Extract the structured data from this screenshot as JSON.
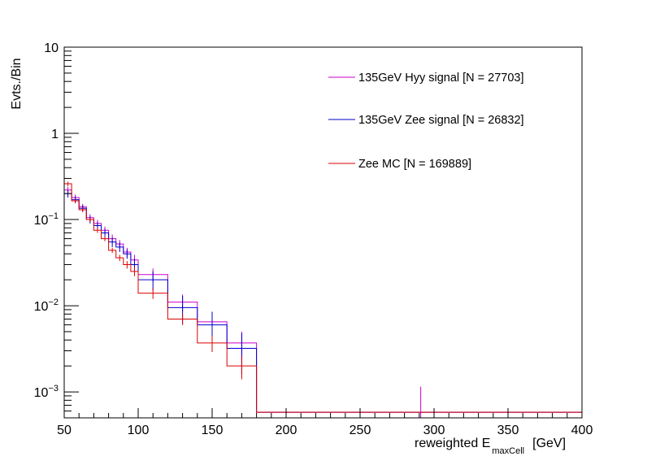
{
  "chart_data": {
    "type": "line",
    "style": "step-histogram",
    "xlabel": "reweighted E",
    "xlabel_sub": "maxCell",
    "xlabel_unit": "[GeV]",
    "ylabel": "Evts./Bin",
    "xlim": [
      50,
      400
    ],
    "ylim": [
      0.0005,
      10
    ],
    "yscale": "log",
    "grid": false,
    "legend_position": "top-right",
    "x_ticks": [
      {
        "value": 50,
        "label": "50"
      },
      {
        "value": 100,
        "label": "100"
      },
      {
        "value": 150,
        "label": "150"
      },
      {
        "value": 200,
        "label": "200"
      },
      {
        "value": 250,
        "label": "250"
      },
      {
        "value": 300,
        "label": "300"
      },
      {
        "value": 350,
        "label": "350"
      },
      {
        "value": 400,
        "label": "400"
      }
    ],
    "y_ticks": [
      {
        "value": 10,
        "label": "10",
        "exp": ""
      },
      {
        "value": 1,
        "label": "1",
        "exp": ""
      },
      {
        "value": 0.1,
        "label": "10",
        "exp": "−1"
      },
      {
        "value": 0.01,
        "label": "10",
        "exp": "−2"
      },
      {
        "value": 0.001,
        "label": "10",
        "exp": "−3"
      }
    ],
    "bin_edges": [
      50,
      55,
      60,
      65,
      70,
      75,
      80,
      85,
      90,
      95,
      100,
      120,
      140,
      160,
      180,
      400
    ],
    "series": [
      {
        "name": "135GeV Hyy signal [N = 27703]",
        "color": "#cc00cc",
        "values": [
          0.22,
          0.18,
          0.14,
          0.105,
          0.09,
          0.075,
          0.06,
          0.052,
          0.042,
          0.034,
          0.023,
          0.011,
          0.0065,
          0.0037,
          0.00058
        ],
        "errors": [
          0.02,
          0.015,
          0.012,
          0.01,
          0.009,
          0.008,
          0.007,
          0.006,
          0.005,
          0.005,
          0.004,
          0.0025,
          0.0018,
          0.0013,
          0.0001
        ],
        "extra_errorbars": [
          {
            "x": 291,
            "y": 0.00058,
            "hi": 0.00115
          }
        ]
      },
      {
        "name": "135GeV Zee signal [N = 26832]",
        "color": "#0000cc",
        "values": [
          0.2,
          0.17,
          0.135,
          0.1,
          0.085,
          0.07,
          0.055,
          0.048,
          0.04,
          0.03,
          0.02,
          0.0095,
          0.006,
          0.0032,
          0.00058
        ],
        "errors": [
          0.02,
          0.015,
          0.012,
          0.01,
          0.009,
          0.008,
          0.007,
          0.006,
          0.005,
          0.005,
          0.005,
          0.0035,
          0.0025,
          0.0016,
          0.0001
        ]
      },
      {
        "name": "Zee MC [N = 169889]",
        "color": "#dd0000",
        "values": [
          0.26,
          0.165,
          0.13,
          0.1,
          0.075,
          0.06,
          0.044,
          0.036,
          0.03,
          0.025,
          0.014,
          0.007,
          0.0037,
          0.002,
          0.00058
        ],
        "errors": [
          0.015,
          0.01,
          0.008,
          0.006,
          0.005,
          0.004,
          0.003,
          0.003,
          0.003,
          0.003,
          0.002,
          0.001,
          0.0008,
          0.0006,
          5e-05
        ]
      }
    ]
  }
}
